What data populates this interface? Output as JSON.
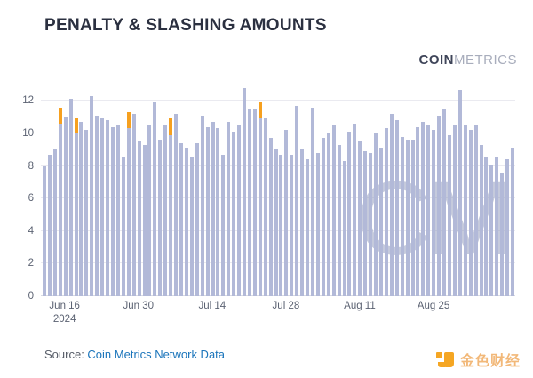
{
  "title": "PENALTY & SLASHING AMOUNTS",
  "logo": {
    "coin": "COIN",
    "metrics": "METRICS"
  },
  "watermark": "CM",
  "source": {
    "label": "Source: ",
    "link": "Coin Metrics Network Data"
  },
  "footer_logo": {
    "text": "金色财经"
  },
  "colors": {
    "bar": "#b2b9d8",
    "highlight": "#f6a01f",
    "title": "#2b3040",
    "axis_text": "#5b6272",
    "gridline": "#eaeaf0",
    "link": "#1b75bb",
    "logo_coin": "#3f4559",
    "logo_metrics": "#a8adbc",
    "watermark": "#8d97bb",
    "jinse_orange": "#f5a623"
  },
  "chart_data": {
    "type": "bar",
    "title": "PENALTY & SLASHING AMOUNTS",
    "xlabel": "",
    "ylabel": "",
    "ylim": [
      0,
      13
    ],
    "yticks": [
      0,
      2,
      4,
      6,
      8,
      10,
      12
    ],
    "grid": true,
    "legend": "none",
    "bar_unit": "daily",
    "values": [
      8.0,
      8.7,
      9.0,
      11.6,
      11.0,
      12.1,
      10.9,
      10.7,
      10.2,
      12.3,
      11.1,
      10.9,
      10.8,
      10.4,
      10.5,
      8.6,
      11.3,
      11.2,
      9.5,
      9.3,
      10.5,
      11.9,
      9.6,
      10.5,
      10.9,
      11.2,
      9.4,
      9.1,
      8.6,
      9.4,
      11.1,
      10.4,
      10.7,
      10.3,
      8.7,
      10.7,
      10.1,
      10.5,
      12.8,
      11.5,
      11.5,
      11.9,
      10.9,
      9.7,
      9.0,
      8.7,
      10.2,
      8.7,
      11.7,
      9.0,
      8.4,
      11.6,
      8.8,
      9.7,
      10.0,
      10.5,
      9.3,
      8.3,
      10.1,
      10.6,
      9.5,
      8.9,
      8.8,
      10.0,
      9.1,
      10.3,
      11.2,
      10.8,
      9.8,
      9.6,
      9.6,
      10.4,
      10.7,
      10.5,
      10.2,
      11.1,
      11.5,
      9.9,
      10.5,
      12.7,
      10.5,
      10.2,
      10.5,
      9.3,
      8.6,
      8.1,
      8.6,
      7.6,
      8.4,
      9.1
    ],
    "highlighted_segments": [
      {
        "index": 3,
        "top": 11.6,
        "base": 10.6
      },
      {
        "index": 6,
        "top": 10.9,
        "base": 10.0
      },
      {
        "index": 16,
        "top": 11.3,
        "base": 10.3
      },
      {
        "index": 24,
        "top": 10.9,
        "base": 9.9
      },
      {
        "index": 41,
        "top": 11.9,
        "base": 10.9
      }
    ],
    "x_ticks": [
      {
        "index": 4,
        "label": "Jun 16",
        "sublabel": "2024"
      },
      {
        "index": 18,
        "label": "Jun 30",
        "sublabel": ""
      },
      {
        "index": 32,
        "label": "Jul 14",
        "sublabel": ""
      },
      {
        "index": 46,
        "label": "Jul 28",
        "sublabel": ""
      },
      {
        "index": 60,
        "label": "Aug 11",
        "sublabel": ""
      },
      {
        "index": 74,
        "label": "Aug 25",
        "sublabel": ""
      }
    ]
  }
}
